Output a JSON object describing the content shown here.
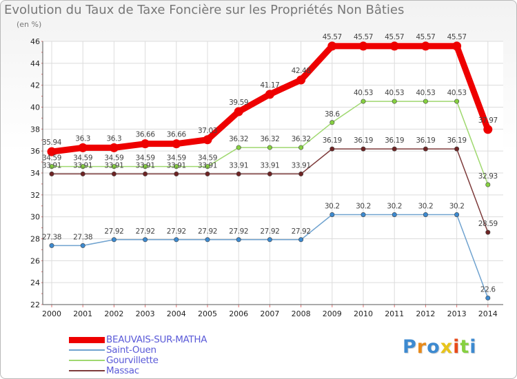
{
  "chart_data": {
    "type": "line",
    "title": "Evolution du Taux de Taxe Foncière sur les Propriétés Non Bâties",
    "ylabel": "(en %)",
    "xlabel": "",
    "categories": [
      "2000",
      "2001",
      "2002",
      "2003",
      "2004",
      "2005",
      "2006",
      "2007",
      "2008",
      "2009",
      "2010",
      "2011",
      "2012",
      "2013",
      "2014"
    ],
    "ylim": [
      22,
      46
    ],
    "yticks": [
      22,
      24,
      26,
      28,
      30,
      32,
      34,
      36,
      38,
      40,
      42,
      44,
      46
    ],
    "grid": true,
    "legend_position": "bottom-left",
    "series": [
      {
        "name": "BEAUVAIS-SUR-MATHA",
        "color": "#ee0000",
        "marker_color": "#ee0000",
        "values": [
          35.94,
          36.3,
          36.3,
          36.66,
          36.66,
          37.03,
          39.59,
          41.17,
          42.48,
          45.57,
          45.57,
          45.57,
          45.57,
          45.57,
          37.97
        ],
        "labels": [
          "35.94",
          "36.3",
          "36.3",
          "36.66",
          "36.66",
          "37.03",
          "39.59",
          "41.17",
          "42.48",
          "45.57",
          "45.57",
          "45.57",
          "45.57",
          "45.57",
          "37.97"
        ]
      },
      {
        "name": "Saint-Ouen",
        "color": "#6fa2cf",
        "marker_color": "#3d8ad0",
        "values": [
          27.38,
          27.38,
          27.92,
          27.92,
          27.92,
          27.92,
          27.92,
          27.92,
          27.92,
          30.2,
          30.2,
          30.2,
          30.2,
          30.2,
          22.6
        ],
        "labels": [
          "27.38",
          "27.38",
          "27.92",
          "27.92",
          "27.92",
          "27.92",
          "27.92",
          "27.92",
          "27.92",
          "30.2",
          "30.2",
          "30.2",
          "30.2",
          "30.2",
          "22.6"
        ]
      },
      {
        "name": "Gourvillette",
        "color": "#9fd86f",
        "marker_color": "#86d040",
        "values": [
          34.59,
          34.59,
          34.59,
          34.59,
          34.59,
          34.59,
          36.32,
          36.32,
          36.32,
          38.6,
          40.53,
          40.53,
          40.53,
          40.53,
          32.93
        ],
        "labels": [
          "34.59",
          "34.59",
          "34.59",
          "34.59",
          "34.59",
          "34.59",
          "36.32",
          "36.32",
          "36.32",
          "38.6",
          "40.53",
          "40.53",
          "40.53",
          "40.53",
          "32.93"
        ]
      },
      {
        "name": "Massac",
        "color": "#7d3a3a",
        "marker_color": "#6e2424",
        "values": [
          33.91,
          33.91,
          33.91,
          33.91,
          33.91,
          33.91,
          33.91,
          33.91,
          33.91,
          36.19,
          36.19,
          36.19,
          36.19,
          36.19,
          28.59
        ],
        "labels": [
          "33.91",
          "33.91",
          "33.91",
          "33.91",
          "33.91",
          "33.91",
          "33.91",
          "33.91",
          "33.91",
          "36.19",
          "36.19",
          "36.19",
          "36.19",
          "36.19",
          "28.59"
        ]
      }
    ]
  },
  "brand": {
    "logo_letters": [
      "P",
      "r",
      "o",
      "x",
      "i",
      "t",
      "i"
    ],
    "logo_colors": [
      "#3d8ad0",
      "#e88a1a",
      "#3d8ad0",
      "#e8c41a",
      "#e84a1a",
      "#86d040",
      "#3d8ad0"
    ]
  }
}
